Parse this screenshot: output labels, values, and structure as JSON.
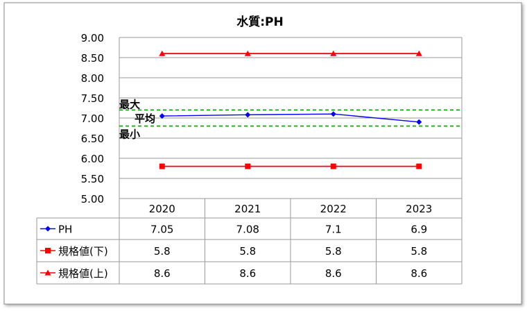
{
  "chart_data": {
    "type": "line",
    "title": "水質:PH",
    "categories": [
      "2020",
      "2021",
      "2022",
      "2023"
    ],
    "ylim": [
      5.0,
      9.0
    ],
    "yticks": [
      "9.00",
      "8.50",
      "8.00",
      "7.50",
      "7.00",
      "6.50",
      "6.00",
      "5.50",
      "5.00"
    ],
    "grid": true,
    "legend": "data-table",
    "series": [
      {
        "name": "PH",
        "values": [
          7.05,
          7.08,
          7.1,
          6.9
        ],
        "display": [
          "7.05",
          "7.08",
          "7.1",
          "6.9"
        ],
        "color": "#0000ff",
        "marker": "diamond"
      },
      {
        "name": "規格値(下)",
        "values": [
          5.8,
          5.8,
          5.8,
          5.8
        ],
        "display": [
          "5.8",
          "5.8",
          "5.8",
          "5.8"
        ],
        "color": "#ff0000",
        "marker": "square"
      },
      {
        "name": "規格値(上)",
        "values": [
          8.6,
          8.6,
          8.6,
          8.6
        ],
        "display": [
          "8.6",
          "8.6",
          "8.6",
          "8.6"
        ],
        "color": "#ff0000",
        "marker": "triangle"
      }
    ],
    "reference_lines": [
      {
        "label": "最大",
        "value": 7.2,
        "color": "#00a000",
        "style": "dashed"
      },
      {
        "label": "平均",
        "value": 7.0
      },
      {
        "label": "最小",
        "value": 6.8,
        "color": "#00a000",
        "style": "dashed"
      }
    ]
  }
}
